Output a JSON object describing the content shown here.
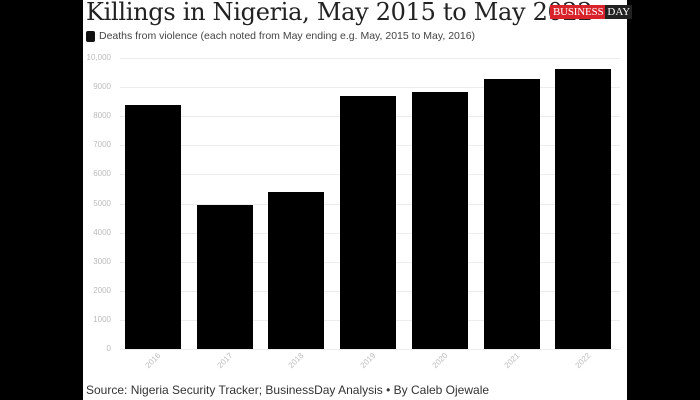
{
  "header": {
    "title": "Killings in Nigeria, May 2015 to May 2022",
    "logo": {
      "part1": "BUSINESS",
      "part2": "DAY",
      "part1_bg": "#d8232a",
      "part2_bg": "#222222"
    },
    "legend_label": "Deaths from violence (each noted from May ending e.g. May, 2015 to May, 2016)"
  },
  "footer": {
    "source": "Source: Nigeria Security Tracker; BusinessDay Analysis • By Caleb Ojewale"
  },
  "chart_data": {
    "type": "bar",
    "title": "Killings in Nigeria, May 2015 to May 2022",
    "subtitle": "Deaths from violence (each noted from May ending e.g. May, 2015 to May, 2016)",
    "xlabel": "",
    "ylabel": "",
    "categories": [
      "2016",
      "2017",
      "2018",
      "2019",
      "2020",
      "2021",
      "2022"
    ],
    "series": [
      {
        "name": "Deaths from violence",
        "color": "#000000",
        "values": [
          8400,
          4950,
          5380,
          8680,
          8820,
          9270,
          9620
        ]
      }
    ],
    "ylim": [
      0,
      10000
    ],
    "yticks": [
      "0",
      "1000",
      "2000",
      "3000",
      "4000",
      "5000",
      "6000",
      "7000",
      "8000",
      "9000",
      "10,000"
    ],
    "grid": true,
    "legend_position": "top-left",
    "source": "Source: Nigeria Security Tracker; BusinessDay Analysis • By Caleb Ojewale"
  }
}
